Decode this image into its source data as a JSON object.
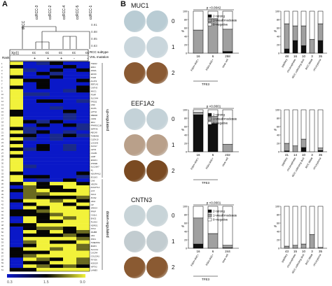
{
  "panels": {
    "a": "A",
    "b": "B"
  },
  "dendro_labels": [
    "tRCC",
    "ccRCC-3",
    "ccRCC-2",
    "ccRCC-4",
    "ccRCC-5",
    "ccRCC-1"
  ],
  "dendro_values": [
    "0.91",
    "0.88",
    "0.85",
    "0.83"
  ],
  "annotation_rows": {
    "xp11": "Xp11",
    "subtype_label": "RCC subtype",
    "vhl_label": "VHL mutation",
    "rank_label": "Rank",
    "subtypes": [
      "cc",
      "cc",
      "cc",
      "cc",
      "cc"
    ],
    "vhl": [
      "+",
      "+",
      "+",
      "-",
      "-"
    ]
  },
  "gene_labels": [
    "TSEN2",
    "EZH1",
    "RXRA",
    "EIF3D",
    "TFEB",
    "ACAT2",
    "EEF1A2",
    "CNTN3",
    "MUC1",
    "PSAP",
    "SLC4A4",
    "TPD52",
    "VDR",
    "DCPS",
    "LZTS2",
    "RBM38",
    "CDK9",
    "IRF2",
    "PPARGC1B",
    "INPP4A",
    "ABCA8",
    "TMEM56",
    "CLDN10",
    "LOC643",
    "SOX17",
    "GPX3",
    "CALB1",
    "HHIP",
    "EFHD1",
    "PTPRB",
    "SLC26A7",
    "KL",
    "NDUFA4L2",
    "EGLN3",
    "CA9",
    "VEGFA",
    "ANGPTL4",
    "LOX",
    "NOL3",
    "PLIN2",
    "HIG2",
    "CP",
    "SPAG4",
    "PFKP",
    "C1QL1",
    "ENO2",
    "PLOD2",
    "NDRG1",
    "STC2",
    "INHBB",
    "HK2",
    "PDK1",
    "TMEM45A",
    "BNIP3",
    "SLC2A1",
    "CXCR4",
    "COL23A1",
    "FXYD6",
    "KISS1R",
    "NPTX2",
    "LAMB3"
  ],
  "group_labels": {
    "up": "up-regulated",
    "down": "down-regulated"
  },
  "scale": {
    "min": "0.3",
    "mid": "1.5",
    "max": "9.0"
  },
  "ihc_sections": [
    {
      "marker": "MUC1",
      "scores": [
        "0",
        "1",
        "2"
      ]
    },
    {
      "marker": "EEF1A2",
      "scores": [
        "0",
        "1",
        "2"
      ]
    },
    {
      "marker": "CNTN3",
      "scores": [
        "0",
        "1",
        "2"
      ]
    }
  ],
  "legend_entries": [
    "2=strong",
    "1=weak/moderate",
    "0=negative"
  ],
  "colors": {
    "strong": "#111111",
    "weak": "#a0a0a0",
    "negative": "#ffffff",
    "heat_low": "#0a18c8",
    "heat_mid": "#050505",
    "heat_high": "#f2f23a",
    "ihc_blue": "#bcd0d8",
    "ihc_brown": "#9a6534"
  },
  "chart_data": [
    {
      "type": "bar",
      "stacked": true,
      "marker": "MUC1",
      "title": "p =0.0042",
      "categories": [
        "FISH+/IHC+",
        "FISH-/IHC+",
        "clear cell"
      ],
      "n": [
        "16",
        "6",
        "258"
      ],
      "group_label": "TFE3",
      "ylabel": "%",
      "ylim": [
        0,
        100
      ],
      "yticks": [
        "0",
        "20",
        "40",
        "60",
        "80",
        "100"
      ],
      "series": [
        {
          "name": "2=strong",
          "values": [
            0,
            0,
            4
          ]
        },
        {
          "name": "1=weak/moderate",
          "values": [
            55,
            82,
            53
          ]
        },
        {
          "name": "0=negative",
          "values": [
            45,
            18,
            43
          ]
        }
      ]
    },
    {
      "type": "bar",
      "stacked": true,
      "marker": "MUC1",
      "categories": [
        "papillary",
        "chromophobe",
        "RCC collecting duct",
        "RCC Mittal",
        "oncocytoma"
      ],
      "n": [
        "48",
        "16",
        "10",
        "3",
        "35"
      ],
      "ylabel": "%",
      "ylim": [
        0,
        100
      ],
      "yticks": [
        "0",
        "20",
        "40",
        "60",
        "80",
        "100"
      ],
      "series": [
        {
          "name": "2=strong",
          "values": [
            10,
            30,
            18,
            0,
            30
          ]
        },
        {
          "name": "1=weak/moderate",
          "values": [
            60,
            35,
            47,
            33,
            40
          ]
        },
        {
          "name": "0=negative",
          "values": [
            30,
            35,
            35,
            67,
            30
          ]
        }
      ]
    },
    {
      "type": "bar",
      "stacked": true,
      "marker": "EEF1A2",
      "title": "p <0.0001",
      "categories": [
        "FISH+/IHC+",
        "FISH-/IHC+",
        "clear cell"
      ],
      "n": [
        "16",
        "6",
        "232"
      ],
      "group_label": "TFE3",
      "ylabel": "%",
      "ylim": [
        0,
        100
      ],
      "yticks": [
        "0",
        "20",
        "40",
        "60",
        "80",
        "100"
      ],
      "series": [
        {
          "name": "2=strong",
          "values": [
            88,
            67,
            0
          ]
        },
        {
          "name": "1=weak/moderate",
          "values": [
            6,
            17,
            18
          ]
        },
        {
          "name": "0=negative",
          "values": [
            6,
            16,
            82
          ]
        }
      ]
    },
    {
      "type": "bar",
      "stacked": true,
      "marker": "EEF1A2",
      "categories": [
        "papillary",
        "chromophobe",
        "RCC collecting duct",
        "RCC Mittal",
        "oncocytoma"
      ],
      "n": [
        "41",
        "14",
        "10",
        "3",
        "35"
      ],
      "ylabel": "%",
      "ylim": [
        0,
        100
      ],
      "yticks": [
        "0",
        "20",
        "40",
        "60",
        "80",
        "100"
      ],
      "series": [
        {
          "name": "2=strong",
          "values": [
            2,
            0,
            10,
            0,
            3
          ]
        },
        {
          "name": "1=weak/moderate",
          "values": [
            18,
            14,
            20,
            0,
            6
          ]
        },
        {
          "name": "0=negative",
          "values": [
            80,
            86,
            70,
            100,
            91
          ]
        }
      ]
    },
    {
      "type": "bar",
      "stacked": true,
      "marker": "CNTN3",
      "title": "p <0.0001",
      "categories": [
        "FISH+/IHC+",
        "FISH-/IHC+",
        "clear cell"
      ],
      "n": [
        "16",
        "6",
        "244"
      ],
      "group_label": "TFE3",
      "ylabel": "%",
      "ylim": [
        0,
        100
      ],
      "yticks": [
        "0",
        "20",
        "40",
        "60",
        "80",
        "100"
      ],
      "series": [
        {
          "name": "2=strong",
          "values": [
            10,
            0,
            1
          ]
        },
        {
          "name": "1=weak/moderate",
          "values": [
            62,
            35,
            6
          ]
        },
        {
          "name": "0=negative",
          "values": [
            28,
            65,
            93
          ]
        }
      ]
    },
    {
      "type": "bar",
      "stacked": true,
      "marker": "CNTN3",
      "categories": [
        "papillary",
        "chromophobe",
        "RCC collecting duct",
        "RCC Mittal",
        "oncocytoma"
      ],
      "n": [
        "43",
        "15",
        "10",
        "3",
        "35"
      ],
      "ylabel": "%",
      "ylim": [
        0,
        100
      ],
      "yticks": [
        "0",
        "20",
        "40",
        "60",
        "80",
        "100"
      ],
      "series": [
        {
          "name": "2=strong",
          "values": [
            0,
            0,
            0,
            0,
            0
          ]
        },
        {
          "name": "1=weak/moderate",
          "values": [
            5,
            7,
            10,
            33,
            2
          ]
        },
        {
          "name": "0=negative",
          "values": [
            95,
            93,
            90,
            67,
            98
          ]
        }
      ]
    }
  ]
}
